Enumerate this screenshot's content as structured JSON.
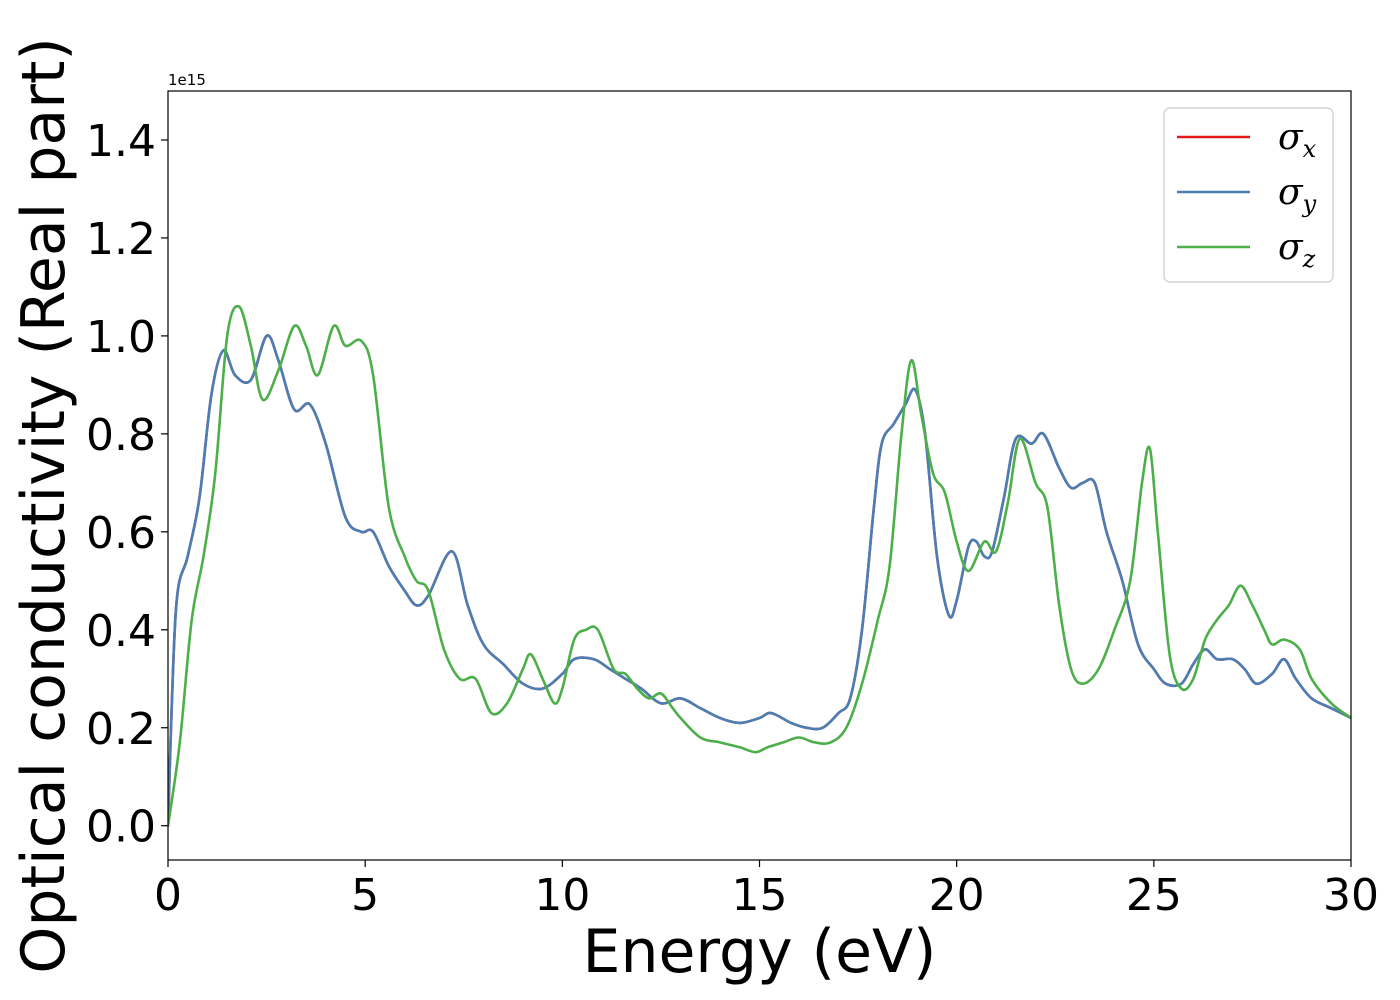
{
  "chart_data": {
    "type": "line",
    "xlabel": "Energy (eV)",
    "ylabel": "Optical conductivity (Real part)",
    "y_offset_text": "1e15",
    "xlim": [
      0,
      30
    ],
    "ylim": [
      -0.07,
      1.5
    ],
    "x_ticks": [
      0,
      5,
      10,
      15,
      20,
      25,
      30
    ],
    "x_tick_labels": [
      "0",
      "5",
      "10",
      "15",
      "20",
      "25",
      "30"
    ],
    "y_ticks": [
      0.0,
      0.2,
      0.4,
      0.6,
      0.8,
      1.0,
      1.2,
      1.4
    ],
    "y_tick_labels": [
      "0.0",
      "0.2",
      "0.4",
      "0.6",
      "0.8",
      "1.0",
      "1.2",
      "1.4"
    ],
    "grid": false,
    "legend_position": "top-right",
    "series": [
      {
        "name": "σx",
        "symbol": "σ",
        "subscript": "x",
        "color": "#e41a1c",
        "x": [
          0,
          0.2,
          0.5,
          0.8,
          1.1,
          1.4,
          1.7,
          2.1,
          2.5,
          2.8,
          3.2,
          3.6,
          4.0,
          4.5,
          4.9,
          5.2,
          5.6,
          6.0,
          6.3,
          6.6,
          7.2,
          7.6,
          8.0,
          8.5,
          9.0,
          9.5,
          10.0,
          10.3,
          10.8,
          11.2,
          11.6,
          12.0,
          12.5,
          13.0,
          13.5,
          14.0,
          14.5,
          15.0,
          15.3,
          15.8,
          16.2,
          16.6,
          17.0,
          17.3,
          17.6,
          17.9,
          18.1,
          18.4,
          18.7,
          18.95,
          19.2,
          19.5,
          19.8,
          20.0,
          20.3,
          20.5,
          20.7,
          20.9,
          21.2,
          21.5,
          21.9,
          22.2,
          22.6,
          22.9,
          23.2,
          23.5,
          23.8,
          24.2,
          24.6,
          25.0,
          25.3,
          25.7,
          26.0,
          26.3,
          26.6,
          27.0,
          27.3,
          27.6,
          28.0,
          28.3,
          28.6,
          29.0,
          29.5,
          30.0
        ],
        "y": [
          0.0,
          0.44,
          0.55,
          0.67,
          0.88,
          0.97,
          0.92,
          0.91,
          1.0,
          0.95,
          0.85,
          0.86,
          0.78,
          0.63,
          0.6,
          0.6,
          0.53,
          0.48,
          0.45,
          0.47,
          0.56,
          0.45,
          0.37,
          0.33,
          0.29,
          0.28,
          0.31,
          0.34,
          0.34,
          0.32,
          0.3,
          0.28,
          0.25,
          0.26,
          0.24,
          0.22,
          0.21,
          0.22,
          0.23,
          0.21,
          0.2,
          0.2,
          0.23,
          0.26,
          0.4,
          0.65,
          0.78,
          0.82,
          0.86,
          0.89,
          0.8,
          0.55,
          0.43,
          0.46,
          0.57,
          0.58,
          0.55,
          0.56,
          0.67,
          0.79,
          0.78,
          0.8,
          0.73,
          0.69,
          0.7,
          0.7,
          0.6,
          0.5,
          0.37,
          0.32,
          0.29,
          0.29,
          0.33,
          0.36,
          0.34,
          0.34,
          0.32,
          0.29,
          0.31,
          0.34,
          0.3,
          0.26,
          0.24,
          0.22
        ]
      },
      {
        "name": "σy",
        "symbol": "σ",
        "subscript": "y",
        "color": "#4a7fb5",
        "x": [
          0,
          0.2,
          0.5,
          0.8,
          1.1,
          1.4,
          1.7,
          2.1,
          2.5,
          2.8,
          3.2,
          3.6,
          4.0,
          4.5,
          4.9,
          5.2,
          5.6,
          6.0,
          6.3,
          6.6,
          7.2,
          7.6,
          8.0,
          8.5,
          9.0,
          9.5,
          10.0,
          10.3,
          10.8,
          11.2,
          11.6,
          12.0,
          12.5,
          13.0,
          13.5,
          14.0,
          14.5,
          15.0,
          15.3,
          15.8,
          16.2,
          16.6,
          17.0,
          17.3,
          17.6,
          17.9,
          18.1,
          18.4,
          18.7,
          18.95,
          19.2,
          19.5,
          19.8,
          20.0,
          20.3,
          20.5,
          20.7,
          20.9,
          21.2,
          21.5,
          21.9,
          22.2,
          22.6,
          22.9,
          23.2,
          23.5,
          23.8,
          24.2,
          24.6,
          25.0,
          25.3,
          25.7,
          26.0,
          26.3,
          26.6,
          27.0,
          27.3,
          27.6,
          28.0,
          28.3,
          28.6,
          29.0,
          29.5,
          30.0
        ],
        "y": [
          0.0,
          0.44,
          0.55,
          0.67,
          0.88,
          0.97,
          0.92,
          0.91,
          1.0,
          0.95,
          0.85,
          0.86,
          0.78,
          0.63,
          0.6,
          0.6,
          0.53,
          0.48,
          0.45,
          0.47,
          0.56,
          0.45,
          0.37,
          0.33,
          0.29,
          0.28,
          0.31,
          0.34,
          0.34,
          0.32,
          0.3,
          0.28,
          0.25,
          0.26,
          0.24,
          0.22,
          0.21,
          0.22,
          0.23,
          0.21,
          0.2,
          0.2,
          0.23,
          0.26,
          0.4,
          0.65,
          0.78,
          0.82,
          0.86,
          0.89,
          0.8,
          0.55,
          0.43,
          0.46,
          0.57,
          0.58,
          0.55,
          0.56,
          0.67,
          0.79,
          0.78,
          0.8,
          0.73,
          0.69,
          0.7,
          0.7,
          0.6,
          0.5,
          0.37,
          0.32,
          0.29,
          0.29,
          0.33,
          0.36,
          0.34,
          0.34,
          0.32,
          0.29,
          0.31,
          0.34,
          0.3,
          0.26,
          0.24,
          0.22
        ]
      },
      {
        "name": "σz",
        "symbol": "σ",
        "subscript": "z",
        "color": "#4daf4a",
        "x": [
          0,
          0.3,
          0.6,
          0.9,
          1.2,
          1.5,
          1.8,
          2.1,
          2.4,
          2.8,
          3.2,
          3.5,
          3.8,
          4.2,
          4.5,
          4.9,
          5.2,
          5.6,
          6.0,
          6.3,
          6.6,
          7.0,
          7.4,
          7.8,
          8.2,
          8.6,
          9.0,
          9.2,
          9.5,
          9.8,
          10.0,
          10.3,
          10.6,
          10.9,
          11.3,
          11.6,
          11.9,
          12.2,
          12.5,
          12.8,
          13.0,
          13.5,
          14.0,
          14.5,
          14.9,
          15.2,
          15.6,
          16.0,
          16.4,
          16.8,
          17.2,
          17.6,
          18.0,
          18.3,
          18.6,
          18.85,
          19.1,
          19.4,
          19.7,
          20.0,
          20.3,
          20.7,
          21.0,
          21.3,
          21.6,
          22.0,
          22.3,
          22.6,
          22.9,
          23.2,
          23.6,
          24.0,
          24.4,
          24.7,
          24.9,
          25.1,
          25.4,
          25.7,
          26.0,
          26.3,
          26.6,
          26.9,
          27.2,
          27.5,
          27.8,
          28.0,
          28.3,
          28.7,
          29.0,
          29.5,
          30.0
        ],
        "y": [
          0.0,
          0.17,
          0.42,
          0.55,
          0.72,
          1.0,
          1.06,
          0.98,
          0.87,
          0.93,
          1.02,
          0.98,
          0.92,
          1.02,
          0.98,
          0.99,
          0.92,
          0.65,
          0.55,
          0.5,
          0.48,
          0.36,
          0.3,
          0.3,
          0.23,
          0.25,
          0.32,
          0.35,
          0.3,
          0.25,
          0.28,
          0.38,
          0.4,
          0.4,
          0.32,
          0.31,
          0.28,
          0.26,
          0.27,
          0.24,
          0.22,
          0.18,
          0.17,
          0.16,
          0.15,
          0.16,
          0.17,
          0.18,
          0.17,
          0.17,
          0.2,
          0.29,
          0.42,
          0.53,
          0.8,
          0.95,
          0.84,
          0.72,
          0.68,
          0.58,
          0.52,
          0.58,
          0.56,
          0.66,
          0.79,
          0.7,
          0.65,
          0.45,
          0.32,
          0.29,
          0.32,
          0.4,
          0.5,
          0.7,
          0.77,
          0.6,
          0.35,
          0.28,
          0.3,
          0.38,
          0.42,
          0.45,
          0.49,
          0.45,
          0.4,
          0.37,
          0.38,
          0.36,
          0.3,
          0.25,
          0.22
        ]
      }
    ]
  }
}
